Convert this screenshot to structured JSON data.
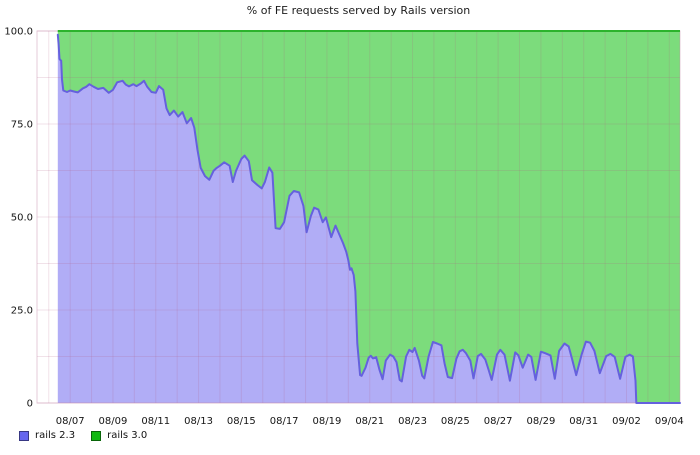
{
  "title": "% of FE requests served by Rails version",
  "legend": [
    {
      "label": "rails 2.3",
      "color": "#6666ee"
    },
    {
      "label": "rails 3.0",
      "color": "#10b810"
    }
  ],
  "chart_data": {
    "type": "area",
    "stacked": true,
    "total_percent": 100,
    "title": "% of FE requests served by Rails version",
    "xlabel": "",
    "ylabel": "% of FE requests",
    "x_unit": "days relative to 08/07 (daily gridlines)",
    "x_range": [
      -1.55,
      28.5
    ],
    "y_range": [
      0,
      100
    ],
    "y_tick_values": [
      0,
      25,
      50,
      75,
      100
    ],
    "y_tick_labels": [
      "0",
      "25.0",
      "50.0",
      "75.0",
      "100.0"
    ],
    "y_minor_grid_step": 12.5,
    "x_tick_positions": [
      0,
      2,
      4,
      6,
      8,
      10,
      12,
      14,
      16,
      18,
      20,
      22,
      24,
      26,
      28
    ],
    "x_tick_labels": [
      "08/07",
      "08/09",
      "08/11",
      "08/13",
      "08/15",
      "08/17",
      "08/19",
      "08/21",
      "08/23",
      "08/25",
      "08/27",
      "08/29",
      "08/31",
      "09/02",
      "09/04"
    ],
    "grid": {
      "show": true,
      "color": "rgba(175,95,135,0.18)"
    },
    "legend_position": "bottom-left",
    "series": [
      {
        "name": "rails 2.3",
        "line_color": "#6561dd",
        "fill_color": "#b1adf6",
        "points": [
          [
            -0.58,
            99
          ],
          [
            -0.54,
            96.5
          ],
          [
            -0.5,
            92.5
          ],
          [
            -0.42,
            92
          ],
          [
            -0.38,
            87
          ],
          [
            -0.32,
            84
          ],
          [
            -0.15,
            83.6
          ],
          [
            0,
            84
          ],
          [
            0.2,
            83.7
          ],
          [
            0.35,
            83.5
          ],
          [
            0.6,
            84.6
          ],
          [
            0.75,
            85
          ],
          [
            0.9,
            85.7
          ],
          [
            1.1,
            85
          ],
          [
            1.3,
            84.4
          ],
          [
            1.55,
            84.7
          ],
          [
            1.8,
            83.4
          ],
          [
            2.0,
            84.2
          ],
          [
            2.2,
            86.2
          ],
          [
            2.45,
            86.6
          ],
          [
            2.6,
            85.6
          ],
          [
            2.75,
            85.1
          ],
          [
            2.95,
            85.7
          ],
          [
            3.1,
            85.2
          ],
          [
            3.3,
            85.9
          ],
          [
            3.45,
            86.6
          ],
          [
            3.6,
            85
          ],
          [
            3.8,
            83.6
          ],
          [
            4.0,
            83.4
          ],
          [
            4.15,
            85.2
          ],
          [
            4.35,
            84.2
          ],
          [
            4.5,
            79.2
          ],
          [
            4.65,
            77.4
          ],
          [
            4.85,
            78.6
          ],
          [
            5.05,
            77
          ],
          [
            5.25,
            78.2
          ],
          [
            5.45,
            75.2
          ],
          [
            5.65,
            76.6
          ],
          [
            5.8,
            74
          ],
          [
            5.95,
            68
          ],
          [
            6.1,
            63.2
          ],
          [
            6.3,
            61
          ],
          [
            6.5,
            60
          ],
          [
            6.7,
            62.4
          ],
          [
            6.85,
            63.2
          ],
          [
            7.0,
            63.8
          ],
          [
            7.2,
            64.7
          ],
          [
            7.45,
            63.8
          ],
          [
            7.6,
            59.4
          ],
          [
            7.75,
            62.4
          ],
          [
            8.0,
            65.6
          ],
          [
            8.15,
            66.5
          ],
          [
            8.35,
            65
          ],
          [
            8.5,
            59.9
          ],
          [
            8.75,
            58.6
          ],
          [
            8.95,
            57.7
          ],
          [
            9.1,
            59.4
          ],
          [
            9.3,
            63.3
          ],
          [
            9.45,
            61.9
          ],
          [
            9.6,
            47
          ],
          [
            9.8,
            46.8
          ],
          [
            10.0,
            48.6
          ],
          [
            10.25,
            55.7
          ],
          [
            10.45,
            57
          ],
          [
            10.7,
            56.6
          ],
          [
            10.9,
            53
          ],
          [
            11.05,
            45.9
          ],
          [
            11.25,
            50.3
          ],
          [
            11.4,
            52.5
          ],
          [
            11.6,
            52
          ],
          [
            11.8,
            48.6
          ],
          [
            11.95,
            49.9
          ],
          [
            12.2,
            44.6
          ],
          [
            12.4,
            47.7
          ],
          [
            12.6,
            45
          ],
          [
            12.75,
            43
          ],
          [
            12.9,
            40.7
          ],
          [
            13.0,
            38.4
          ],
          [
            13.08,
            35.8
          ],
          [
            13.15,
            36.2
          ],
          [
            13.25,
            34.4
          ],
          [
            13.33,
            30
          ],
          [
            13.42,
            16
          ],
          [
            13.55,
            7.5
          ],
          [
            13.62,
            7.3
          ],
          [
            13.8,
            9.5
          ],
          [
            13.95,
            12.2
          ],
          [
            14.05,
            12.7
          ],
          [
            14.15,
            12
          ],
          [
            14.3,
            12.3
          ],
          [
            14.45,
            9
          ],
          [
            14.6,
            6.4
          ],
          [
            14.75,
            11.4
          ],
          [
            14.95,
            13
          ],
          [
            15.1,
            12.5
          ],
          [
            15.25,
            11
          ],
          [
            15.4,
            6.2
          ],
          [
            15.5,
            5.8
          ],
          [
            15.7,
            12.5
          ],
          [
            15.85,
            14.3
          ],
          [
            16.0,
            13.7
          ],
          [
            16.1,
            14.8
          ],
          [
            16.3,
            11.4
          ],
          [
            16.45,
            7.3
          ],
          [
            16.55,
            6.6
          ],
          [
            16.75,
            12.5
          ],
          [
            16.95,
            16.4
          ],
          [
            17.15,
            16
          ],
          [
            17.35,
            15.5
          ],
          [
            17.5,
            10.6
          ],
          [
            17.65,
            7
          ],
          [
            17.85,
            6.7
          ],
          [
            18.05,
            11.9
          ],
          [
            18.2,
            13.9
          ],
          [
            18.35,
            14.3
          ],
          [
            18.5,
            13.4
          ],
          [
            18.7,
            11.4
          ],
          [
            18.85,
            6.6
          ],
          [
            19.05,
            12.6
          ],
          [
            19.2,
            13.2
          ],
          [
            19.4,
            11.7
          ],
          [
            19.55,
            9
          ],
          [
            19.7,
            6.2
          ],
          [
            19.95,
            13
          ],
          [
            20.1,
            14.3
          ],
          [
            20.3,
            13
          ],
          [
            20.55,
            6
          ],
          [
            20.8,
            13.6
          ],
          [
            20.95,
            12.8
          ],
          [
            21.15,
            9.5
          ],
          [
            21.4,
            13
          ],
          [
            21.55,
            12.4
          ],
          [
            21.75,
            6.2
          ],
          [
            22.0,
            13.8
          ],
          [
            22.2,
            13.4
          ],
          [
            22.45,
            12.8
          ],
          [
            22.65,
            6.5
          ],
          [
            22.85,
            14
          ],
          [
            23.1,
            16
          ],
          [
            23.3,
            15.2
          ],
          [
            23.45,
            12
          ],
          [
            23.65,
            7.5
          ],
          [
            23.9,
            13
          ],
          [
            24.1,
            16.5
          ],
          [
            24.3,
            16.2
          ],
          [
            24.5,
            14
          ],
          [
            24.75,
            8
          ],
          [
            25.05,
            12.6
          ],
          [
            25.25,
            13.2
          ],
          [
            25.45,
            12.4
          ],
          [
            25.7,
            6.5
          ],
          [
            25.95,
            12.4
          ],
          [
            26.15,
            13
          ],
          [
            26.3,
            12.5
          ],
          [
            26.42,
            6
          ],
          [
            26.46,
            0
          ],
          [
            28.5,
            0
          ]
        ]
      },
      {
        "name": "rails 3.0",
        "line_color": "#2cb32c",
        "fill_color": "#7cdc7c",
        "values": "complement: 100 minus rails 2.3 at every point (stacked to 100%)"
      }
    ]
  }
}
